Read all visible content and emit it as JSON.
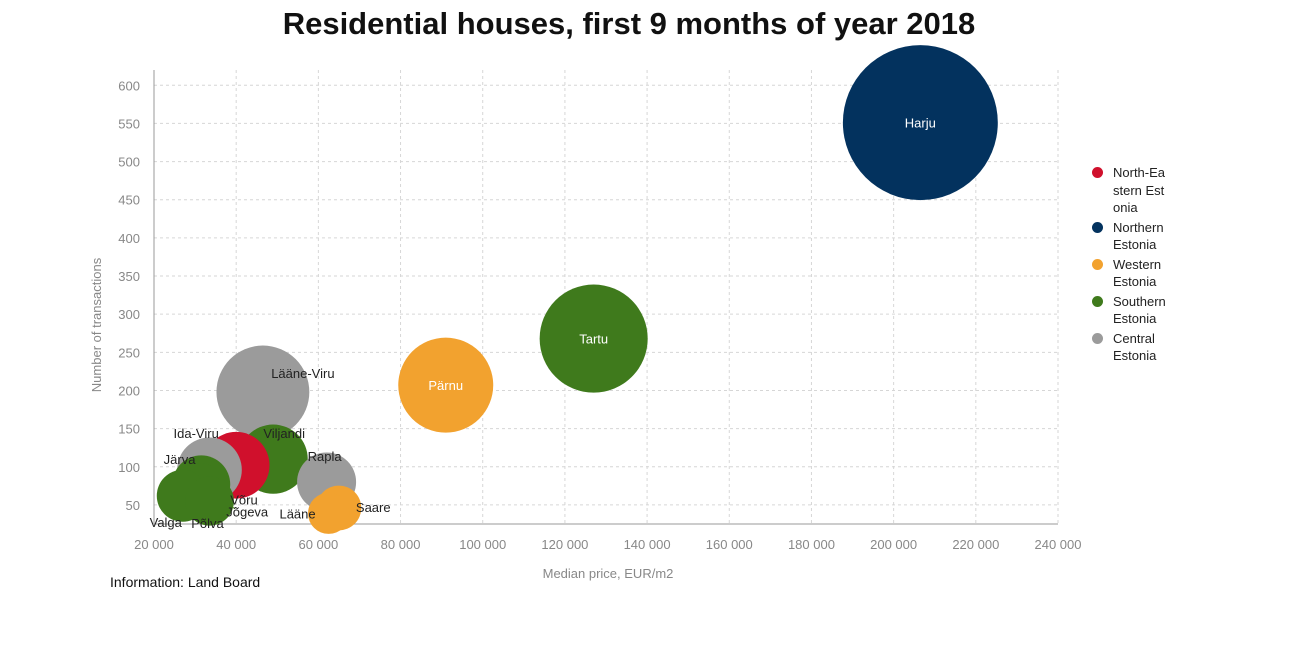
{
  "title": "Residential houses, first 9 months of year 2018",
  "source": "Information: Land Board",
  "chart_data": {
    "type": "scatter",
    "subtype": "bubble",
    "title": "Residential houses, first 9 months of year 2018",
    "xlabel": "Median price, EUR/m2",
    "ylabel": "Number of transactions",
    "xlim": [
      20000,
      240000
    ],
    "ylim": [
      25,
      620
    ],
    "xticks": [
      20000,
      40000,
      60000,
      80000,
      100000,
      120000,
      140000,
      160000,
      180000,
      200000,
      220000,
      240000
    ],
    "xtick_labels": [
      "20 000",
      "40 000",
      "60 000",
      "80 000",
      "100 000",
      "120 000",
      "140 000",
      "160 000",
      "180 000",
      "200 000",
      "220 000",
      "240 000"
    ],
    "yticks": [
      50,
      100,
      150,
      200,
      250,
      300,
      350,
      400,
      450,
      500,
      550,
      600
    ],
    "ytick_labels": [
      "50",
      "100",
      "150",
      "200",
      "250",
      "300",
      "350",
      "400",
      "450",
      "500",
      "550",
      "600"
    ],
    "grid": true,
    "legend_position": "right",
    "series": [
      {
        "name": "North-Eastern Estonia",
        "color": "#d0102c",
        "points": [
          {
            "label": "Ida-Viru",
            "x": 40000,
            "y": 102,
            "z": 102
          }
        ]
      },
      {
        "name": "Northern Estonia",
        "color": "#03325e",
        "points": [
          {
            "label": "Harju",
            "x": 206500,
            "y": 551,
            "z": 551
          }
        ]
      },
      {
        "name": "Western Estonia",
        "color": "#f2a22f",
        "points": [
          {
            "label": "Pärnu",
            "x": 91000,
            "y": 207,
            "z": 207
          },
          {
            "label": "Saare",
            "x": 65000,
            "y": 46,
            "z": 46
          },
          {
            "label": "Lääne",
            "x": 62500,
            "y": 39,
            "z": 39
          }
        ]
      },
      {
        "name": "Southern Estonia",
        "color": "#3f7a1c",
        "points": [
          {
            "label": "Tartu",
            "x": 127000,
            "y": 268,
            "z": 268
          },
          {
            "label": "Viljandi",
            "x": 49000,
            "y": 110,
            "z": 110
          },
          {
            "label": "Võru",
            "x": 31500,
            "y": 77,
            "z": 77
          },
          {
            "label": "Valga",
            "x": 27000,
            "y": 62,
            "z": 62
          },
          {
            "label": "Põlva",
            "x": 33500,
            "y": 55,
            "z": 55
          },
          {
            "label": "Jõgeva",
            "x": 31000,
            "y": 69,
            "z": 69
          }
        ]
      },
      {
        "name": "Central Estonia",
        "color": "#9b9b9b",
        "points": [
          {
            "label": "Lääne-Viru",
            "x": 46500,
            "y": 198,
            "z": 198
          },
          {
            "label": "Järva",
            "x": 33500,
            "y": 96,
            "z": 96
          },
          {
            "label": "Rapla",
            "x": 62000,
            "y": 80,
            "z": 80
          }
        ]
      }
    ]
  }
}
